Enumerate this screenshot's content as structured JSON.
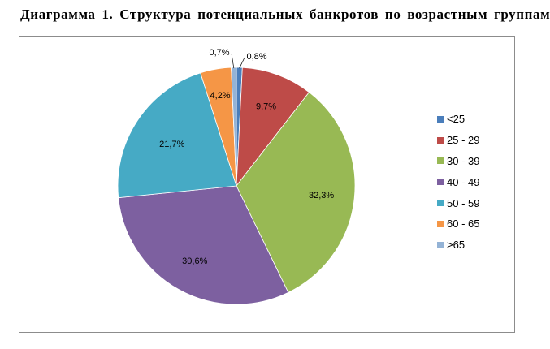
{
  "title": "Диаграмма 1. Структура потенциальных банкротов по возрастным группам",
  "chart_data": {
    "type": "pie",
    "categories": [
      "<25",
      "25 - 29",
      "30 - 39",
      "40 - 49",
      "50 - 59",
      "60 - 65",
      ">65"
    ],
    "values": [
      0.8,
      9.7,
      32.3,
      30.6,
      21.7,
      4.2,
      0.7
    ],
    "data_labels": [
      "0,8%",
      "9,7%",
      "32,3%",
      "30,6%",
      "21,7%",
      "4,2%",
      "0,7%"
    ],
    "colors": [
      "#4a7ebb",
      "#be4b48",
      "#98b954",
      "#7d60a0",
      "#46aac5",
      "#f59646",
      "#94b3d6"
    ],
    "legend_position": "right",
    "start_angle_deg": 0,
    "direction": "clockwise"
  }
}
